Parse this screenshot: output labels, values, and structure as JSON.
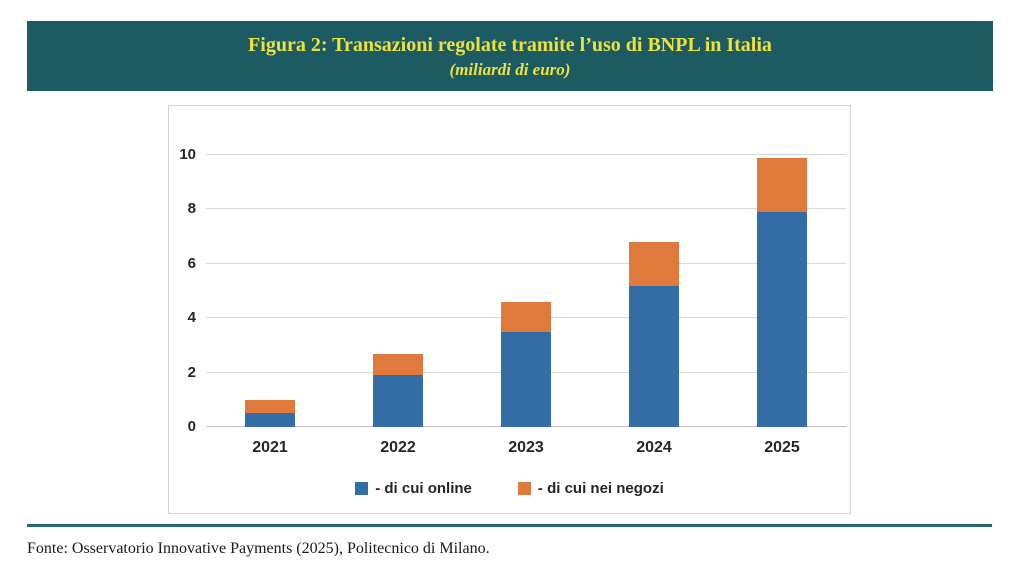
{
  "header": {
    "title": "Figura 2: Transazioni regolate tramite l’uso di BNPL in Italia",
    "subtitle": "(miliardi di euro)"
  },
  "chart_data": {
    "type": "bar",
    "stacked": true,
    "title": "Figura 2: Transazioni regolate tramite l’uso di BNPL in Italia",
    "subtitle": "(miliardi di euro)",
    "unit": "miliardi di euro",
    "categories": [
      "2021",
      "2022",
      "2023",
      "2024",
      "2025"
    ],
    "series": [
      {
        "name": "- di cui online",
        "color": "#346CA6",
        "values": [
          0.5,
          1.9,
          3.5,
          5.2,
          7.9
        ]
      },
      {
        "name": "- di cui nei negozi",
        "color": "#E0793C",
        "values": [
          0.5,
          0.8,
          1.1,
          1.6,
          2.0
        ]
      }
    ],
    "totals": [
      1.0,
      2.7,
      4.6,
      6.8,
      9.9
    ],
    "ylim": [
      0,
      10
    ],
    "ytick_step": 2,
    "grid": true,
    "legend_position": "bottom-center"
  },
  "colors": {
    "banner_bg": "#1D5B63",
    "banner_text": "#EDE23D",
    "online": "#346CA6",
    "negozi": "#E0793C",
    "divider": "#26666E",
    "gridline": "#D9D9D9"
  },
  "footer": {
    "source": "Fonte: Osservatorio Innovative Payments (2025), Politecnico di Milano."
  }
}
